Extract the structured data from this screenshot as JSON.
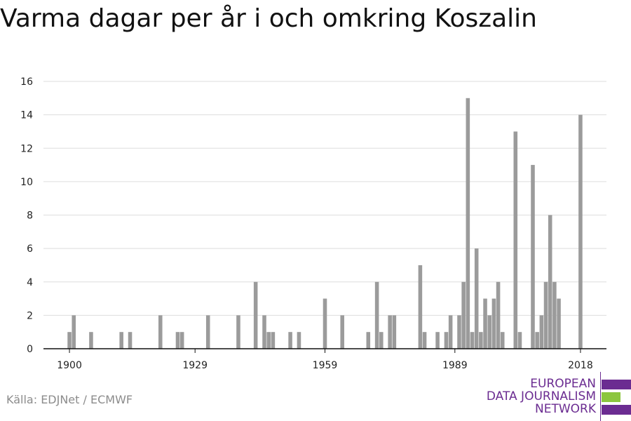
{
  "title": "Varma dagar per år i och omkring Koszalin",
  "source": "Källa: EDJNet / ECMWF",
  "logo": {
    "lines": [
      "EUROPEAN",
      "DATA JOURNALISM",
      "NETWORK"
    ],
    "colors": {
      "primary": "#6b2c91",
      "accent": "#8cc63f"
    }
  },
  "colors": {
    "bar": "#9b9b9b",
    "grid": "#dddddd",
    "axis": "#111111"
  },
  "chart_data": {
    "type": "bar",
    "title": "Varma dagar per år i och omkring Koszalin",
    "xlabel": "",
    "ylabel": "",
    "ylim": [
      0,
      16
    ],
    "yticks": [
      0,
      2,
      4,
      6,
      8,
      10,
      12,
      14,
      16
    ],
    "xticks": [
      1900,
      1929,
      1959,
      1989,
      2018
    ],
    "xlim": [
      1894,
      2024
    ],
    "grid": true,
    "x": [
      1900,
      1901,
      1905,
      1912,
      1914,
      1921,
      1925,
      1926,
      1932,
      1939,
      1943,
      1945,
      1946,
      1947,
      1951,
      1953,
      1959,
      1963,
      1969,
      1971,
      1972,
      1974,
      1975,
      1981,
      1982,
      1985,
      1987,
      1988,
      1990,
      1991,
      1992,
      1993,
      1994,
      1995,
      1996,
      1997,
      1998,
      1999,
      2000,
      2003,
      2004,
      2007,
      2008,
      2009,
      2010,
      2011,
      2012,
      2013,
      2018
    ],
    "values": [
      1,
      2,
      1,
      1,
      1,
      2,
      1,
      1,
      2,
      2,
      4,
      2,
      1,
      1,
      1,
      1,
      3,
      2,
      1,
      4,
      1,
      2,
      2,
      5,
      1,
      1,
      1,
      2,
      2,
      4,
      15,
      1,
      6,
      1,
      3,
      2,
      3,
      4,
      1,
      13,
      1,
      11,
      1,
      2,
      4,
      8,
      4,
      3,
      14
    ]
  }
}
